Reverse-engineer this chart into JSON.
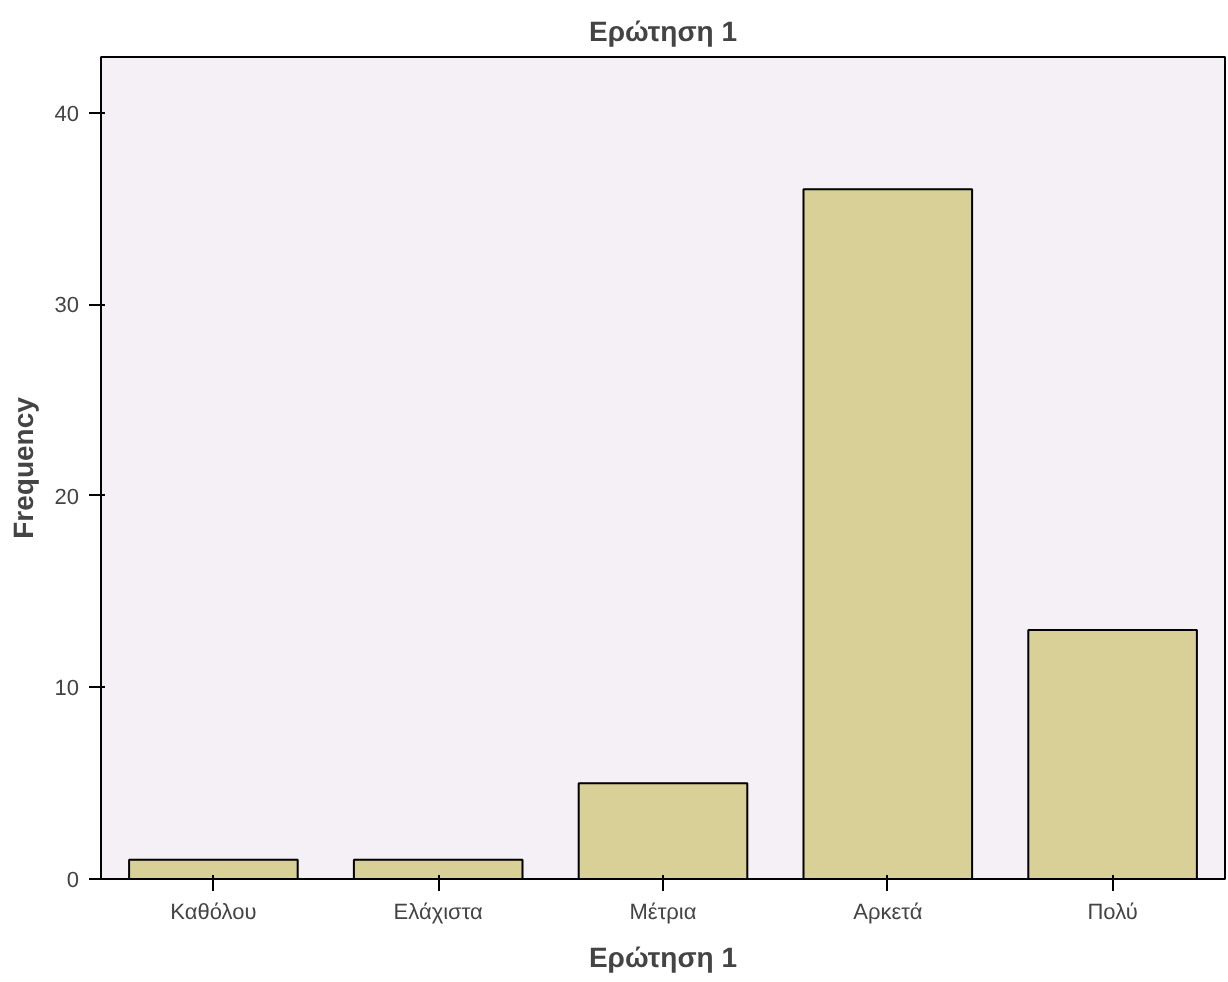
{
  "chart_data": {
    "type": "bar",
    "title": "Ερώτηση 1",
    "xlabel": "Ερώτηση 1",
    "ylabel": "Frequency",
    "categories": [
      "Καθόλου",
      "Ελάχιστα",
      "Μέτρια",
      "Αρκετά",
      "Πολύ"
    ],
    "values": [
      1,
      1,
      5,
      36,
      13
    ],
    "color": "#d8d096",
    "ylim": [
      0,
      42.9
    ],
    "yticks": [
      0,
      10,
      20,
      30,
      40
    ],
    "grid": false
  }
}
